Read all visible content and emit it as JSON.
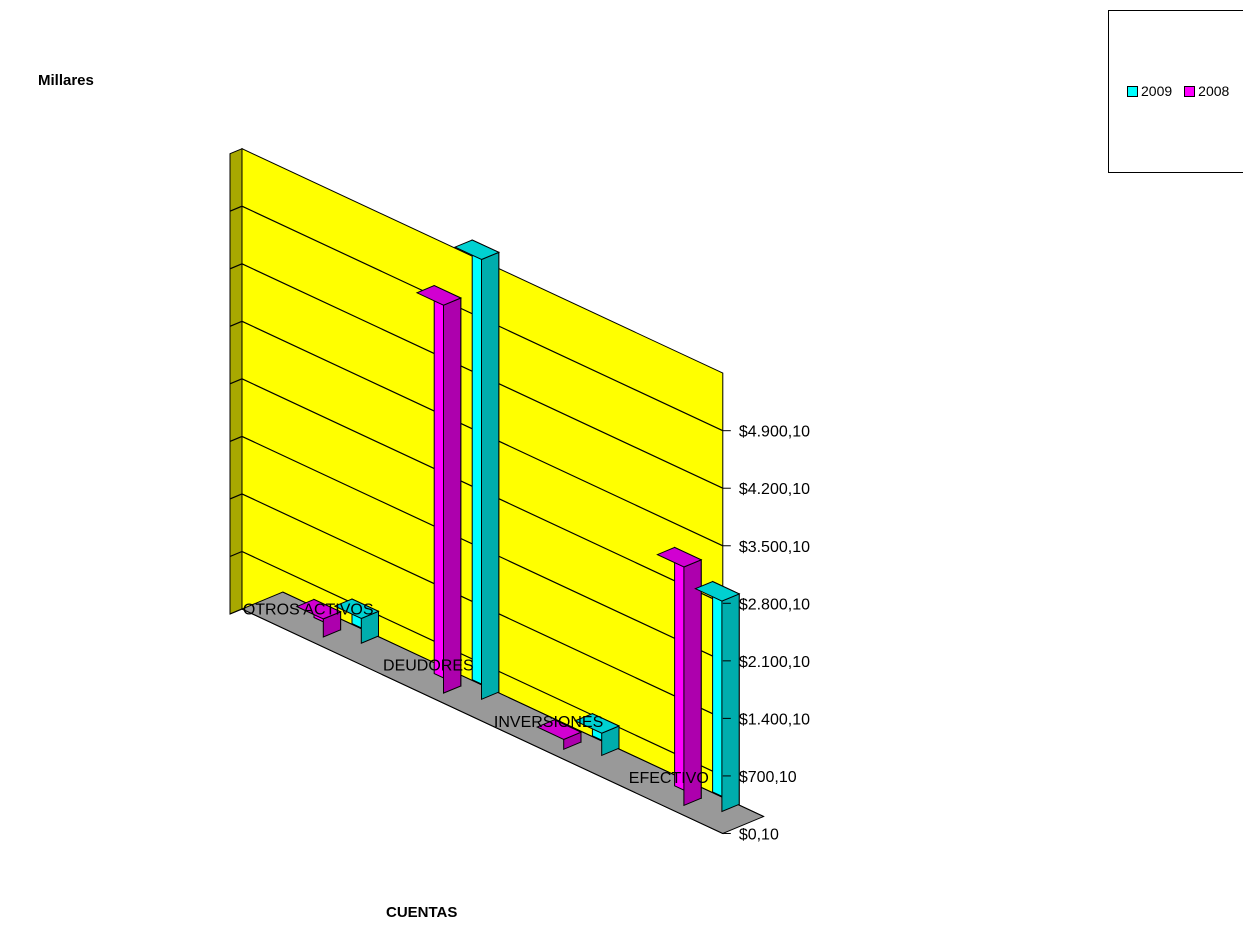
{
  "chart_data": {
    "type": "bar",
    "title": "",
    "xlabel": "CUENTAS",
    "ylabel": "Millares",
    "categories": [
      "OTROS ACTIVOS",
      "DEUDORES",
      "INVERSIONES",
      "EFECTIVO"
    ],
    "series": [
      {
        "name": "2008",
        "color": "#ff00ff",
        "values": [
          220,
          4720,
          120,
          2900
        ]
      },
      {
        "name": "2009",
        "color": "#00ffff",
        "values": [
          300,
          5350,
          270,
          2560
        ]
      }
    ],
    "y_ticks": [
      "$0,10",
      "$700,10",
      "$1.400,10",
      "$2.100,10",
      "$2.800,10",
      "$3.500,10",
      "$4.200,10",
      "$4.900,10"
    ],
    "ylim": [
      0.1,
      5600.1
    ],
    "grid": true,
    "legend_position": "top-right",
    "wall_color": "#ffff00",
    "side_wall_color": "#a8a800",
    "floor_color": "#999999"
  }
}
